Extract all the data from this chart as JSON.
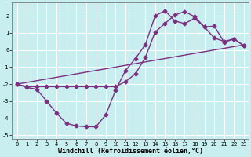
{
  "line1_x": [
    0,
    1,
    2,
    3,
    4,
    5,
    6,
    7,
    8,
    9,
    10,
    11,
    12,
    13,
    14,
    15,
    16,
    17,
    18,
    19,
    20,
    21,
    22,
    23
  ],
  "line1_y": [
    -2.0,
    -2.2,
    -2.3,
    -3.0,
    -3.7,
    -4.3,
    -4.45,
    -4.5,
    -4.5,
    -3.8,
    -2.35,
    -1.2,
    -0.5,
    0.3,
    2.0,
    2.3,
    1.7,
    1.55,
    1.85,
    1.35,
    0.7,
    0.5,
    0.65,
    0.25
  ],
  "line2_x": [
    0,
    23
  ],
  "line2_y": [
    -2.0,
    0.3
  ],
  "line3_x": [
    0,
    1,
    2,
    3,
    4,
    5,
    6,
    7,
    8,
    9,
    10,
    11,
    12,
    13,
    14,
    15,
    16,
    17,
    18,
    19,
    20,
    21,
    22,
    23
  ],
  "line3_y": [
    -2.0,
    -2.15,
    -2.15,
    -2.15,
    -2.15,
    -2.15,
    -2.15,
    -2.15,
    -2.15,
    -2.15,
    -2.15,
    -1.85,
    -1.4,
    -0.45,
    1.05,
    1.55,
    2.05,
    2.25,
    1.95,
    1.35,
    1.4,
    0.45,
    0.65,
    0.25
  ],
  "line_color": "#7b3080",
  "marker": "D",
  "markersize": 2.5,
  "linewidth": 1.0,
  "bg_color": "#c8eef0",
  "grid_color": "#ffffff",
  "xlabel": "Windchill (Refroidissement éolien,°C)",
  "xlim": [
    -0.5,
    23.5
  ],
  "ylim": [
    -5.2,
    2.8
  ],
  "yticks": [
    -5,
    -4,
    -3,
    -2,
    -1,
    0,
    1,
    2
  ],
  "xticks": [
    0,
    1,
    2,
    3,
    4,
    5,
    6,
    7,
    8,
    9,
    10,
    11,
    12,
    13,
    14,
    15,
    16,
    17,
    18,
    19,
    20,
    21,
    22,
    23
  ],
  "tick_fontsize": 5.0,
  "xlabel_fontsize": 6.0
}
